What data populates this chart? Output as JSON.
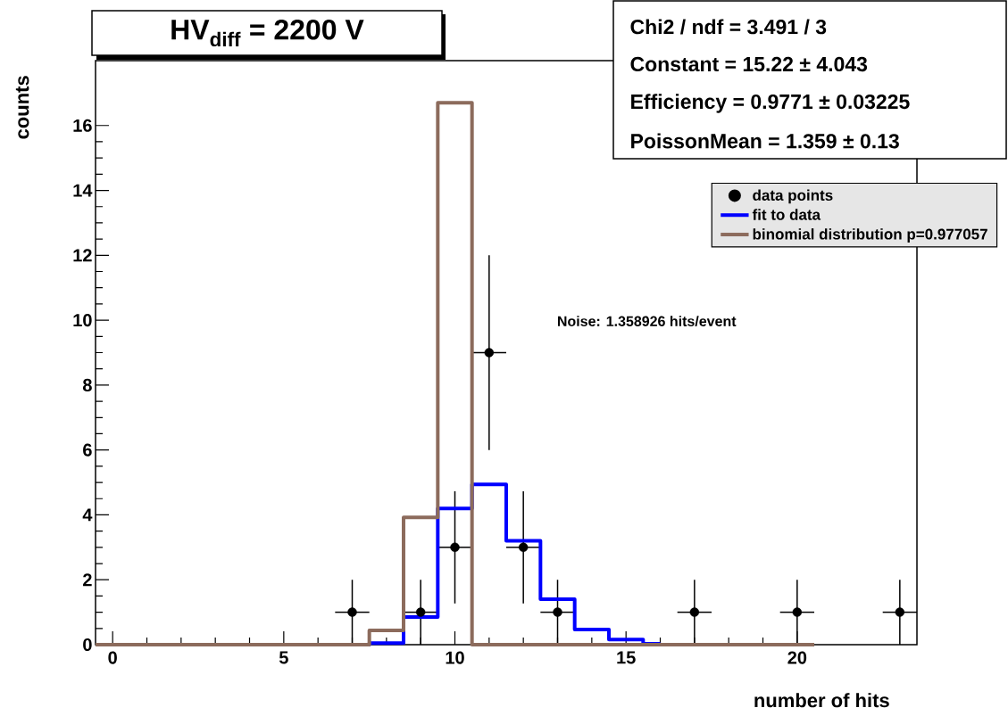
{
  "chart_data": {
    "type": "scatter",
    "title": "HV$_{diff}$ = 2200 V",
    "xlabel": "number of hits",
    "ylabel": "counts",
    "xlim": [
      -0.5,
      23.5
    ],
    "ylim": [
      0,
      18
    ],
    "xticks": [
      0,
      5,
      10,
      15,
      20
    ],
    "yticks": [
      0,
      2,
      4,
      6,
      8,
      10,
      12,
      14,
      16
    ],
    "grid": false,
    "legend": "top right",
    "annotations": [
      "Chi2 / ndf = 3.491 / 3",
      "Constant = 15.22 ± 4.043",
      "Efficiency = 0.9771 ± 0.03225",
      "PoissonMean = 1.359 ±  0.13",
      "Noise: 1.358926 hits/event"
    ],
    "series": [
      {
        "name": "data points",
        "marker": "circle",
        "color": "#000000",
        "x": [
          7,
          9,
          10,
          11,
          12,
          13,
          17,
          20,
          23
        ],
        "values": [
          1,
          1,
          3,
          9,
          3,
          1,
          1,
          1,
          1
        ],
        "errors": [
          1,
          1,
          1.73,
          3,
          1.73,
          1,
          1,
          1,
          1
        ],
        "xerrors": [
          0.5,
          0.5,
          0.5,
          0.5,
          0.5,
          0.5,
          0.5,
          0.5,
          0.5
        ]
      },
      {
        "name": "fit to data",
        "type": "step",
        "marker": "none",
        "color": "#0000ff",
        "x": [
          2.5,
          7.5,
          8.5,
          9.5,
          10.5,
          11.5,
          12.5,
          13.5,
          14.5,
          15.5,
          16
        ],
        "values": [
          0,
          0.05,
          0.85,
          4.2,
          4.94,
          3.2,
          1.4,
          0.47,
          0.16,
          0.03,
          0.03
        ]
      },
      {
        "name": "binomial distribution p=0.977057",
        "type": "step",
        "marker": "none",
        "color": "#8c6b5c",
        "x": [
          -0.5,
          7.5,
          8.5,
          9.5,
          10.5,
          20.5
        ],
        "values": [
          0,
          0.44,
          3.92,
          16.7,
          0,
          0
        ]
      }
    ]
  }
}
